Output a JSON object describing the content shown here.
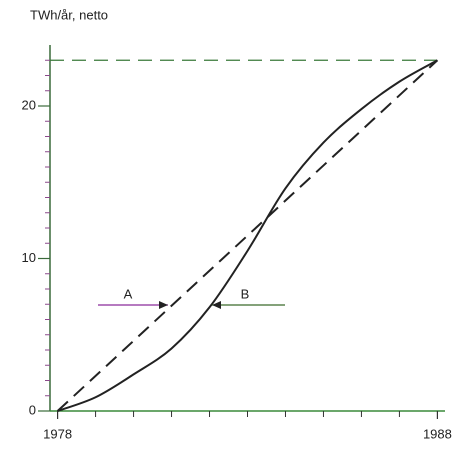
{
  "chart_data": {
    "type": "line",
    "y_label": "TWh/år, netto",
    "series": [
      {
        "color": "#222222",
        "dash": false,
        "x": [
          1978,
          1979,
          1980,
          1981,
          1982,
          1983,
          1984,
          1985,
          1986,
          1987,
          1988
        ],
        "values": [
          0,
          0.9,
          2.4,
          4.1,
          6.8,
          10.5,
          14.6,
          17.6,
          19.8,
          21.6,
          23
        ]
      },
      {
        "color": "#222222",
        "dash": true,
        "x": [
          1978,
          1988
        ],
        "values": [
          0,
          23
        ]
      }
    ],
    "hline": {
      "value": 23,
      "color": "#3a7a3a"
    },
    "xlim": [
      1977.8,
      1988.2
    ],
    "xticks": [
      1978,
      1988
    ],
    "xminorticks": [
      1979,
      1980,
      1981,
      1982,
      1983,
      1984,
      1985,
      1986,
      1987
    ],
    "ylim": [
      0,
      24
    ],
    "yticks": [
      0,
      10,
      20
    ],
    "yminorticks": [
      1,
      2,
      3,
      4,
      5,
      6,
      7,
      8,
      9,
      11,
      12,
      13,
      14,
      15,
      16,
      17,
      18,
      19,
      21,
      22,
      23
    ],
    "annotations": [
      {
        "text": "A",
        "color": "#8a2a9a"
      },
      {
        "text": "B",
        "color": "#3a6a2a"
      }
    ]
  }
}
